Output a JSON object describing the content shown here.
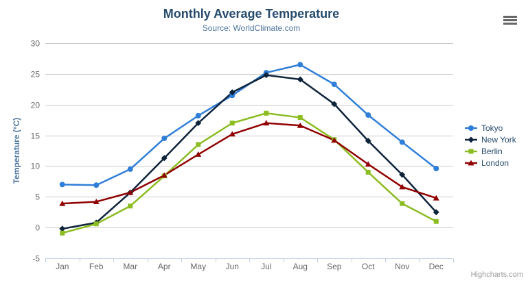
{
  "header": {
    "title": "Monthly Average Temperature",
    "subtitle": "Source: WorldClimate.com"
  },
  "icons": {
    "context_menu": "hamburger-menu"
  },
  "credits": {
    "label": "Highcharts.com"
  },
  "colors": {
    "title": "#274b6d",
    "subtitle": "#4d759e",
    "axis_title": "#4d759e",
    "axis_label": "#666666",
    "gridline": "#c9c9c9",
    "axis_line": "#c0d0e0",
    "legend_text": "#274b6d",
    "credits_text": "#999999"
  },
  "chart_data": {
    "type": "line",
    "title": "Monthly Average Temperature",
    "subtitle": "Source: WorldClimate.com",
    "categories": [
      "Jan",
      "Feb",
      "Mar",
      "Apr",
      "May",
      "Jun",
      "Jul",
      "Aug",
      "Sep",
      "Oct",
      "Nov",
      "Dec"
    ],
    "series": [
      {
        "name": "Tokyo",
        "color": "#2f7ed8",
        "marker": "circle",
        "values": [
          7.0,
          6.9,
          9.5,
          14.5,
          18.2,
          21.5,
          25.2,
          26.5,
          23.3,
          18.3,
          13.9,
          9.6
        ]
      },
      {
        "name": "New York",
        "color": "#0d233a",
        "marker": "diamond",
        "values": [
          -0.2,
          0.8,
          5.7,
          11.3,
          17.0,
          22.0,
          24.8,
          24.1,
          20.1,
          14.1,
          8.6,
          2.5
        ]
      },
      {
        "name": "Berlin",
        "color": "#8bbc21",
        "marker": "square",
        "values": [
          -0.9,
          0.6,
          3.5,
          8.4,
          13.5,
          17.0,
          18.6,
          17.9,
          14.3,
          9.0,
          3.9,
          1.0
        ]
      },
      {
        "name": "London",
        "color": "#910000",
        "marker": "triangle",
        "values": [
          3.9,
          4.2,
          5.7,
          8.5,
          11.9,
          15.2,
          17.0,
          16.6,
          14.2,
          10.3,
          6.6,
          4.8
        ]
      }
    ],
    "xlabel": "",
    "ylabel": "Temperature (°C)",
    "ylim": [
      -5,
      30
    ],
    "yticks": [
      -5,
      0,
      5,
      10,
      15,
      20,
      25,
      30
    ],
    "grid": true,
    "legend_position": "right"
  }
}
